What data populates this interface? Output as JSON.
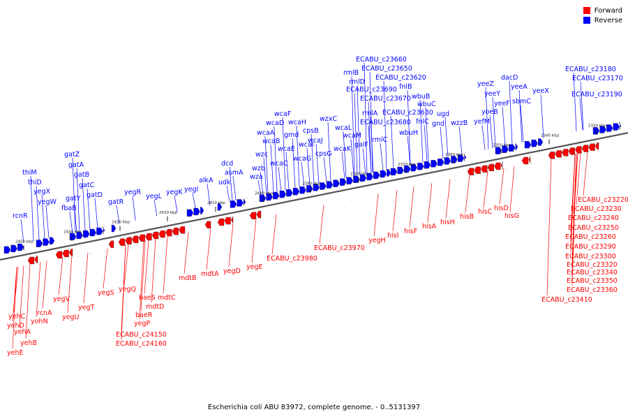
{
  "colors": {
    "forward": "#ff0000",
    "reverse": "#0000ff",
    "axis": "#777777"
  },
  "legend": {
    "forward_label": "Forward",
    "reverse_label": "Reverse"
  },
  "caption": "Escherichia coli ABU 83972, complete genome. - 0..5131397",
  "ticks": [
    "2450 kbp",
    "2440 kbp",
    "2430 kbp",
    "2420 kbp",
    "2410 kbp",
    "2400 kbp",
    "2390 kbp",
    "2380 kbp",
    "2370 kbp",
    "2360 kbp",
    "2350 kbp",
    "2340 kbp",
    "2330 kbp"
  ],
  "reverse_labels": [
    "rcnR",
    "thiM",
    "thiD",
    "yegX",
    "yegW",
    "gatZ",
    "gatA",
    "gatB",
    "gatY",
    "fbaB",
    "gatC",
    "gatD",
    "gatR",
    "yegR",
    "yegL",
    "yegK",
    "yegI",
    "alkA",
    "dcd",
    "udk",
    "asmA",
    "wzb",
    "wza",
    "wzc",
    "wcaA",
    "wcaB",
    "wcaC",
    "wcaD",
    "wcaF",
    "wcaE",
    "gmd",
    "wcaH",
    "wcaI",
    "wcaG",
    "cpsB",
    "cpsG",
    "wcaJ",
    "wzxC",
    "wcaK",
    "wcaL",
    "wcaM",
    "galF",
    "rmlB",
    "rmlD",
    "ECABU_c23690",
    "rmlA",
    "ECABU_c23680",
    "rmlC",
    "ECABU_c23660",
    "ECABU_c23650",
    "ECABU_c23670",
    "ECABU_c23620",
    "fnlB",
    "wbuB",
    "wbuC",
    "ECABU_c23630",
    "wbuH",
    "fnlC",
    "gnd",
    "ugd",
    "wzzB",
    "yeeZ",
    "yeeY",
    "yoeB",
    "yefM",
    "yeeF",
    "dacD",
    "yeeA",
    "sbmC",
    "yeeX",
    "ECABU_c23180",
    "ECABU_c23170",
    "ECABU_c23190"
  ],
  "forward_labels": [
    "yehC",
    "yehD",
    "yehA",
    "yehB",
    "yehE",
    "rcnA",
    "yohN",
    "yegV",
    "yegU",
    "yegT",
    "yegS",
    "yegQ",
    "baeS",
    "mdtD",
    "baeR",
    "yegP",
    "ECABU_c24150",
    "ECABU_c24160",
    "mdtC",
    "mdtB",
    "mdtA",
    "yegD",
    "yegE",
    "ECABU_c23980",
    "ECABU_c23970",
    "yegH",
    "hisI",
    "hisF",
    "hisA",
    "hisH",
    "hisB",
    "hisC",
    "hisD",
    "hisG",
    "ECABU_c23220",
    "ECABU_c23230",
    "ECABU_c23240",
    "ECABU_c23250",
    "ECABU_c23260",
    "ECABU_c23290",
    "ECABU_c23300",
    "ECABU_c23320",
    "ECABU_c23340",
    "ECABU_c23350",
    "ECABU_c23360",
    "ECABU_c23410"
  ]
}
